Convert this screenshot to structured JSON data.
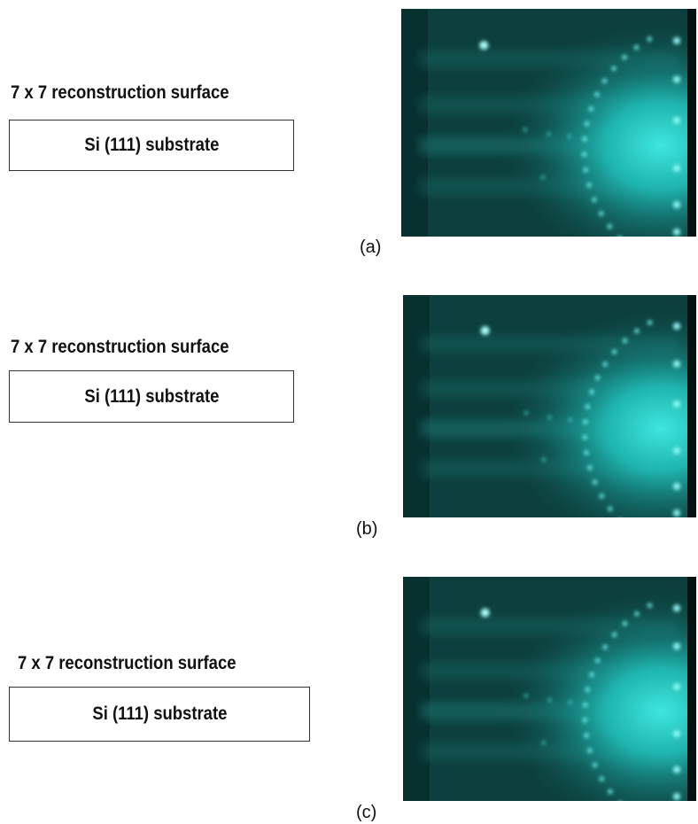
{
  "panels": [
    {
      "label": "(a)",
      "surface": "7 x 7 reconstruction surface",
      "substrate": "Si (111) substrate"
    },
    {
      "label": "(b)",
      "surface": "7 x 7 reconstruction surface",
      "substrate": "Si (111) substrate"
    },
    {
      "label": "(c)",
      "surface": "7 x 7 reconstruction surface",
      "substrate": "Si (111) substrate"
    }
  ]
}
